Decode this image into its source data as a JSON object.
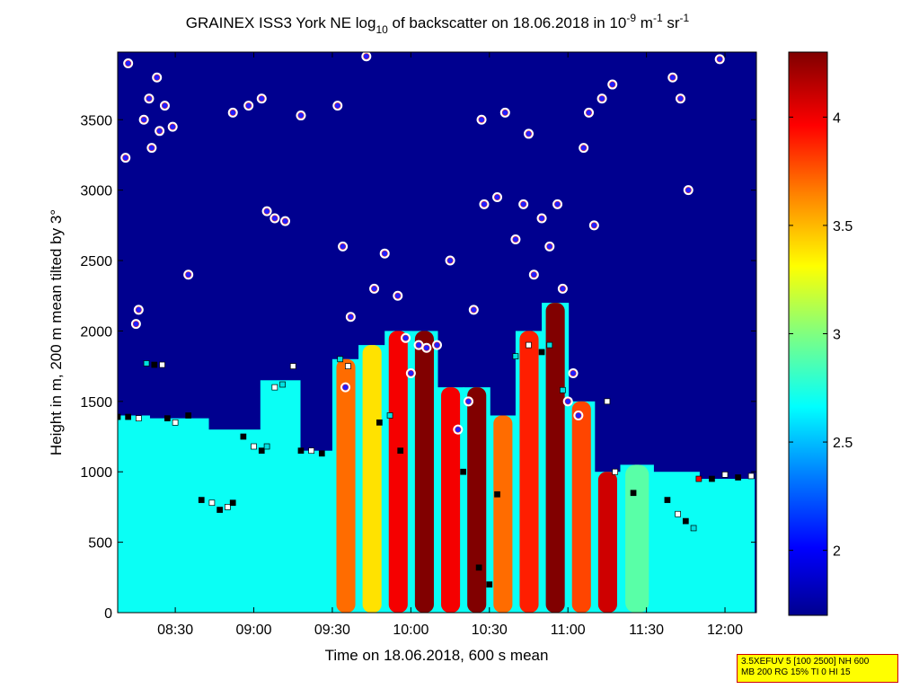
{
  "chart_data": {
    "type": "heatmap",
    "title": {
      "main": "GRAINEX ISS3 York NE log",
      "main_sub": "10",
      "main_rest": " of backscatter on 18.06.2018 in 10",
      "unit_sup1": "-9",
      "unit_mid": " m",
      "unit_sup2": "-1",
      "unit_sr": " sr",
      "unit_sup3": "-1"
    },
    "xlabel": "Time on 18.06.2018, 600 s mean",
    "ylabel": "Height in m, 200 m mean tilted by 3°",
    "x_ticks": [
      "08:30",
      "09:00",
      "09:30",
      "10:00",
      "10:30",
      "11:00",
      "11:30",
      "12:00"
    ],
    "y_ticks": [
      "0",
      "500",
      "1000",
      "1500",
      "2000",
      "2500",
      "3000",
      "3500"
    ],
    "xlim": [
      "08:08",
      "12:12"
    ],
    "ylim": [
      0,
      3980
    ],
    "colorbar": {
      "ticks": [
        "2",
        "2.5",
        "3",
        "3.5",
        "4"
      ],
      "range": [
        1.7,
        4.3
      ]
    },
    "colormap": [
      "#00008f",
      "#0000ff",
      "#0080ff",
      "#00ffff",
      "#80ff80",
      "#ffff00",
      "#ff8000",
      "#ff0000",
      "#800000"
    ],
    "plume_profiles": [
      {
        "t": "08:10",
        "top": 1400,
        "level": 2.7
      },
      {
        "t": "08:30",
        "top": 1380,
        "level": 2.7
      },
      {
        "t": "08:55",
        "top": 1300,
        "level": 2.7
      },
      {
        "t": "09:10",
        "top": 1650,
        "level": 2.75
      },
      {
        "t": "09:25",
        "top": 1150,
        "level": 2.7
      },
      {
        "t": "09:35",
        "top": 1800,
        "level": 3.7
      },
      {
        "t": "09:45",
        "top": 1900,
        "level": 3.4
      },
      {
        "t": "09:55",
        "top": 2000,
        "level": 4.0
      },
      {
        "t": "10:05",
        "top": 2000,
        "level": 4.3
      },
      {
        "t": "10:15",
        "top": 1600,
        "level": 4.0
      },
      {
        "t": "10:25",
        "top": 1600,
        "level": 4.3
      },
      {
        "t": "10:35",
        "top": 1400,
        "level": 3.7
      },
      {
        "t": "10:45",
        "top": 2000,
        "level": 3.9
      },
      {
        "t": "10:55",
        "top": 2200,
        "level": 4.3
      },
      {
        "t": "11:05",
        "top": 1500,
        "level": 3.8
      },
      {
        "t": "11:15",
        "top": 1000,
        "level": 4.1
      },
      {
        "t": "11:25",
        "top": 1050,
        "level": 2.9
      },
      {
        "t": "11:40",
        "top": 1000,
        "level": 2.6
      },
      {
        "t": "12:00",
        "top": 950,
        "level": 2.6
      },
      {
        "t": "12:10",
        "top": 950,
        "level": 2.6
      }
    ],
    "cloud_points": [
      {
        "t": "08:11",
        "h": 3230
      },
      {
        "t": "08:12",
        "h": 3900
      },
      {
        "t": "08:15",
        "h": 2050
      },
      {
        "t": "08:16",
        "h": 2150
      },
      {
        "t": "08:18",
        "h": 3500
      },
      {
        "t": "08:20",
        "h": 3650
      },
      {
        "t": "08:21",
        "h": 3300
      },
      {
        "t": "08:23",
        "h": 3800
      },
      {
        "t": "08:24",
        "h": 3420
      },
      {
        "t": "08:26",
        "h": 3600
      },
      {
        "t": "08:29",
        "h": 3450
      },
      {
        "t": "08:35",
        "h": 2400
      },
      {
        "t": "08:52",
        "h": 3550
      },
      {
        "t": "08:58",
        "h": 3600
      },
      {
        "t": "09:03",
        "h": 3650
      },
      {
        "t": "09:05",
        "h": 2850
      },
      {
        "t": "09:08",
        "h": 2800
      },
      {
        "t": "09:12",
        "h": 2780
      },
      {
        "t": "09:18",
        "h": 3530
      },
      {
        "t": "09:32",
        "h": 3600
      },
      {
        "t": "09:34",
        "h": 2600
      },
      {
        "t": "09:35",
        "h": 1600
      },
      {
        "t": "09:37",
        "h": 2100
      },
      {
        "t": "09:43",
        "h": 3950
      },
      {
        "t": "09:46",
        "h": 2300
      },
      {
        "t": "09:50",
        "h": 2550
      },
      {
        "t": "09:55",
        "h": 2250
      },
      {
        "t": "09:58",
        "h": 1950
      },
      {
        "t": "10:00",
        "h": 1700
      },
      {
        "t": "10:03",
        "h": 1900
      },
      {
        "t": "10:06",
        "h": 1880
      },
      {
        "t": "10:10",
        "h": 1900
      },
      {
        "t": "10:15",
        "h": 2500
      },
      {
        "t": "10:18",
        "h": 1300
      },
      {
        "t": "10:22",
        "h": 1500
      },
      {
        "t": "10:24",
        "h": 2150
      },
      {
        "t": "10:27",
        "h": 3500
      },
      {
        "t": "10:28",
        "h": 2900
      },
      {
        "t": "10:33",
        "h": 2950
      },
      {
        "t": "10:36",
        "h": 3550
      },
      {
        "t": "10:40",
        "h": 2650
      },
      {
        "t": "10:43",
        "h": 2900
      },
      {
        "t": "10:45",
        "h": 3400
      },
      {
        "t": "10:47",
        "h": 2400
      },
      {
        "t": "10:50",
        "h": 2800
      },
      {
        "t": "10:53",
        "h": 2600
      },
      {
        "t": "10:56",
        "h": 2900
      },
      {
        "t": "10:58",
        "h": 2300
      },
      {
        "t": "11:00",
        "h": 1500
      },
      {
        "t": "11:02",
        "h": 1700
      },
      {
        "t": "11:04",
        "h": 1400
      },
      {
        "t": "11:06",
        "h": 3300
      },
      {
        "t": "11:08",
        "h": 3550
      },
      {
        "t": "11:10",
        "h": 2750
      },
      {
        "t": "11:13",
        "h": 3650
      },
      {
        "t": "11:17",
        "h": 3750
      },
      {
        "t": "11:40",
        "h": 3800
      },
      {
        "t": "11:43",
        "h": 3650
      },
      {
        "t": "11:46",
        "h": 3000
      },
      {
        "t": "11:58",
        "h": 3930
      }
    ],
    "layer_points": [
      {
        "t": "08:08",
        "h": 1390,
        "c": "#000000"
      },
      {
        "t": "08:12",
        "h": 1390,
        "c": "#000000"
      },
      {
        "t": "08:16",
        "h": 1380,
        "c": "#ffffff"
      },
      {
        "t": "08:19",
        "h": 1770,
        "c": "#00e0e0"
      },
      {
        "t": "08:22",
        "h": 1760,
        "c": "#000000"
      },
      {
        "t": "08:25",
        "h": 1760,
        "c": "#ffffff"
      },
      {
        "t": "08:27",
        "h": 1380,
        "c": "#000000"
      },
      {
        "t": "08:30",
        "h": 1350,
        "c": "#ffffff"
      },
      {
        "t": "08:35",
        "h": 1400,
        "c": "#000000"
      },
      {
        "t": "08:40",
        "h": 800,
        "c": "#000000"
      },
      {
        "t": "08:44",
        "h": 780,
        "c": "#ffffff"
      },
      {
        "t": "08:47",
        "h": 730,
        "c": "#000000"
      },
      {
        "t": "08:50",
        "h": 750,
        "c": "#ffffff"
      },
      {
        "t": "08:52",
        "h": 780,
        "c": "#000000"
      },
      {
        "t": "08:56",
        "h": 1250,
        "c": "#000000"
      },
      {
        "t": "09:00",
        "h": 1180,
        "c": "#ffffff"
      },
      {
        "t": "09:03",
        "h": 1150,
        "c": "#000000"
      },
      {
        "t": "09:05",
        "h": 1180,
        "c": "#00e0e0"
      },
      {
        "t": "09:08",
        "h": 1600,
        "c": "#ffffff"
      },
      {
        "t": "09:11",
        "h": 1620,
        "c": "#00e0e0"
      },
      {
        "t": "09:15",
        "h": 1750,
        "c": "#ffffff"
      },
      {
        "t": "09:18",
        "h": 1150,
        "c": "#000000"
      },
      {
        "t": "09:22",
        "h": 1150,
        "c": "#ffffff"
      },
      {
        "t": "09:26",
        "h": 1130,
        "c": "#000000"
      },
      {
        "t": "09:33",
        "h": 1800,
        "c": "#00e0e0"
      },
      {
        "t": "09:36",
        "h": 1750,
        "c": "#ffffff"
      },
      {
        "t": "09:48",
        "h": 1350,
        "c": "#000000"
      },
      {
        "t": "09:52",
        "h": 1400,
        "c": "#00e0e0"
      },
      {
        "t": "09:56",
        "h": 1150,
        "c": "#000000"
      },
      {
        "t": "10:20",
        "h": 1000,
        "c": "#000000"
      },
      {
        "t": "10:26",
        "h": 320,
        "c": "#000000"
      },
      {
        "t": "10:30",
        "h": 200,
        "c": "#000000"
      },
      {
        "t": "10:33",
        "h": 840,
        "c": "#000000"
      },
      {
        "t": "10:40",
        "h": 1820,
        "c": "#00e0e0"
      },
      {
        "t": "10:45",
        "h": 1900,
        "c": "#ffffff"
      },
      {
        "t": "10:50",
        "h": 1850,
        "c": "#000000"
      },
      {
        "t": "10:53",
        "h": 1900,
        "c": "#00e0e0"
      },
      {
        "t": "10:58",
        "h": 1580,
        "c": "#00e0e0"
      },
      {
        "t": "11:15",
        "h": 1500,
        "c": "#ffffff"
      },
      {
        "t": "11:18",
        "h": 1000,
        "c": "#ffffff"
      },
      {
        "t": "11:25",
        "h": 850,
        "c": "#000000"
      },
      {
        "t": "11:38",
        "h": 800,
        "c": "#000000"
      },
      {
        "t": "11:42",
        "h": 700,
        "c": "#ffffff"
      },
      {
        "t": "11:45",
        "h": 650,
        "c": "#000000"
      },
      {
        "t": "11:48",
        "h": 600,
        "c": "#00e0e0"
      },
      {
        "t": "11:50",
        "h": 950,
        "c": "#ff0000"
      },
      {
        "t": "11:55",
        "h": 950,
        "c": "#000000"
      },
      {
        "t": "12:00",
        "h": 980,
        "c": "#ffffff"
      },
      {
        "t": "12:05",
        "h": 960,
        "c": "#000000"
      },
      {
        "t": "12:10",
        "h": 970,
        "c": "#ffffff"
      }
    ]
  },
  "info_box": {
    "line1": "3.5XEFUV 5 [100 2500] NH 600",
    "line2": "MB 200 RG 15% TI 0 HI 15"
  }
}
